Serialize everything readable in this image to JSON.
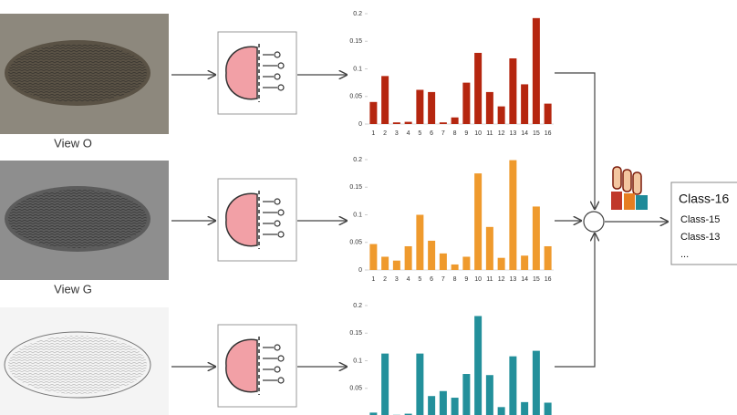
{
  "view_labels": [
    "View O",
    "View G"
  ],
  "output_classes": [
    "Class-16",
    "Class-15",
    "Class-13",
    "..."
  ],
  "chart_data": [
    {
      "type": "bar",
      "color": "#b5260f",
      "ylim": [
        0,
        0.2
      ],
      "yticks": [
        0,
        0.05,
        0.1,
        0.15,
        0.2
      ],
      "categories": [
        "1",
        "2",
        "3",
        "4",
        "5",
        "6",
        "7",
        "8",
        "9",
        "10",
        "11",
        "12",
        "13",
        "14",
        "15",
        "16"
      ],
      "values": [
        0.04,
        0.087,
        0.003,
        0.004,
        0.062,
        0.058,
        0.003,
        0.012,
        0.075,
        0.129,
        0.058,
        0.032,
        0.119,
        0.072,
        0.192,
        0.037
      ]
    },
    {
      "type": "bar",
      "color": "#ef9a2d",
      "ylim": [
        0,
        0.2
      ],
      "yticks": [
        0,
        0.05,
        0.1,
        0.15,
        0.2
      ],
      "categories": [
        "1",
        "2",
        "3",
        "4",
        "5",
        "6",
        "7",
        "8",
        "9",
        "10",
        "11",
        "12",
        "13",
        "14",
        "15",
        "16"
      ],
      "values": [
        0.047,
        0.024,
        0.017,
        0.043,
        0.1,
        0.053,
        0.03,
        0.01,
        0.024,
        0.175,
        0.078,
        0.022,
        0.199,
        0.026,
        0.115,
        0.043
      ]
    },
    {
      "type": "bar",
      "color": "#23909b",
      "ylim": [
        0,
        0.2
      ],
      "yticks": [
        0.05,
        0.1,
        0.15,
        0.2
      ],
      "values": [
        0.006,
        0.113,
        0.002,
        0.004,
        0.113,
        0.036,
        0.045,
        0.033,
        0.076,
        0.181,
        0.074,
        0.016,
        0.108,
        0.025,
        0.118,
        0.024
      ]
    }
  ]
}
